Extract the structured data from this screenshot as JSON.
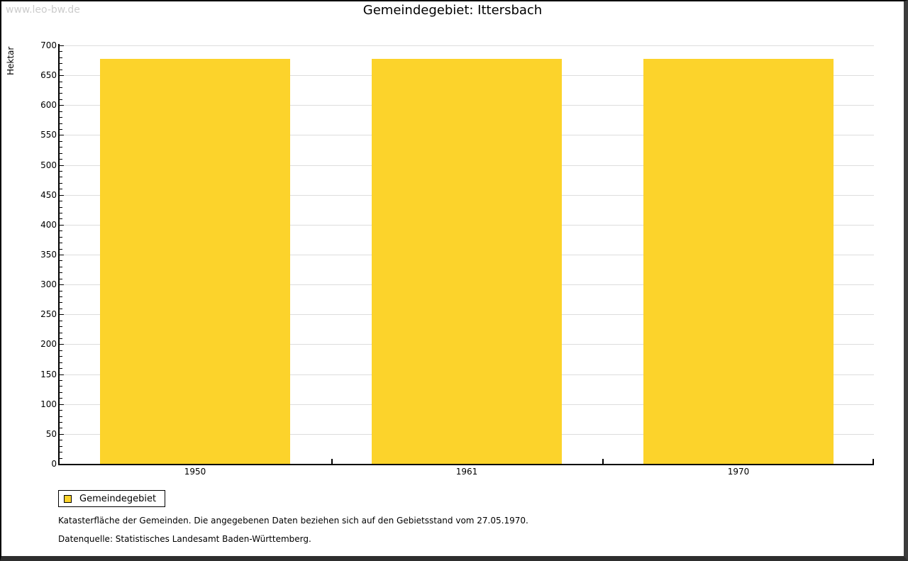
{
  "watermark": "www.leo-bw.de",
  "title": "Gemeindegebiet: Ittersbach",
  "chart_data": {
    "type": "bar",
    "title": "Gemeindegebiet: Ittersbach",
    "categories": [
      "1950",
      "1961",
      "1970"
    ],
    "series": [
      {
        "name": "Gemeindegebiet",
        "values": [
          678,
          678,
          678
        ]
      }
    ],
    "xlabel": "",
    "ylabel": "Hektar",
    "ylim": [
      0,
      700
    ],
    "yticks": [
      0,
      50,
      100,
      150,
      200,
      250,
      300,
      350,
      400,
      450,
      500,
      550,
      600,
      650,
      700
    ],
    "minor_tick_step": 10,
    "grid": true,
    "gridline_color": "#dddddd",
    "bar_color": "#FCD32B",
    "legend": [
      {
        "label": "Gemeindegebiet",
        "color": "#FCD32B"
      }
    ],
    "legend_position": "bottom-left"
  },
  "footnotes": [
    "Katasterfläche der Gemeinden. Die angegebenen Daten beziehen sich auf den Gebietsstand vom 27.05.1970.",
    "Datenquelle: Statistisches Landesamt Baden-Württemberg."
  ]
}
